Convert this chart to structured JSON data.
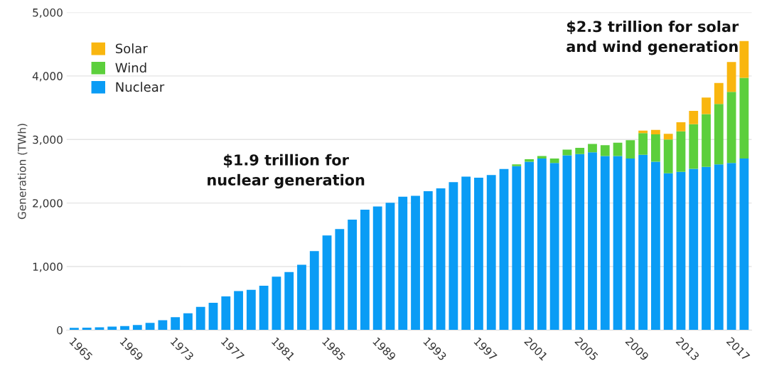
{
  "chart_data": {
    "type": "bar",
    "stacked": true,
    "ylabel": "Generation (TWh)",
    "categories": [
      "1965",
      null,
      null,
      null,
      "1969",
      null,
      null,
      null,
      "1973",
      null,
      null,
      null,
      "1977",
      null,
      null,
      null,
      "1981",
      null,
      null,
      null,
      "1985",
      null,
      null,
      null,
      "1989",
      null,
      null,
      null,
      "1993",
      null,
      null,
      null,
      "1997",
      null,
      null,
      null,
      "2001",
      null,
      null,
      null,
      "2005",
      null,
      null,
      null,
      "2009",
      null,
      null,
      null,
      "2013",
      null,
      null,
      null,
      "2017",
      null
    ],
    "series": [
      {
        "name": "Nuclear",
        "color": "#0a9cf5",
        "values": [
          35,
          40,
          45,
          55,
          65,
          80,
          115,
          155,
          205,
          265,
          365,
          430,
          530,
          615,
          635,
          700,
          840,
          915,
          1030,
          1245,
          1490,
          1590,
          1740,
          1895,
          1945,
          2005,
          2100,
          2115,
          2185,
          2230,
          2330,
          2415,
          2400,
          2440,
          2535,
          2580,
          2650,
          2700,
          2630,
          2750,
          2770,
          2800,
          2740,
          2740,
          2700,
          2760,
          2650,
          2470,
          2490,
          2540,
          2570,
          2610,
          2630,
          2700
        ]
      },
      {
        "name": "Wind",
        "color": "#5ccf3c",
        "values": [
          null,
          null,
          null,
          null,
          null,
          null,
          null,
          null,
          null,
          null,
          null,
          null,
          null,
          null,
          null,
          null,
          null,
          null,
          null,
          null,
          null,
          null,
          null,
          null,
          null,
          null,
          null,
          null,
          null,
          null,
          null,
          null,
          null,
          null,
          null,
          30,
          40,
          40,
          70,
          90,
          100,
          130,
          170,
          210,
          290,
          340,
          430,
          530,
          640,
          700,
          830,
          950,
          1120,
          1270
        ]
      },
      {
        "name": "Solar",
        "color": "#f9b60f",
        "values": [
          null,
          null,
          null,
          null,
          null,
          null,
          null,
          null,
          null,
          null,
          null,
          null,
          null,
          null,
          null,
          null,
          null,
          null,
          null,
          null,
          null,
          null,
          null,
          null,
          null,
          null,
          null,
          null,
          null,
          null,
          null,
          null,
          null,
          null,
          null,
          null,
          null,
          null,
          null,
          null,
          null,
          null,
          null,
          null,
          null,
          40,
          70,
          90,
          140,
          210,
          260,
          330,
          470,
          580
        ]
      }
    ],
    "ylim": [
      0,
      5000
    ],
    "yticks": [
      {
        "value": 0,
        "label": "0"
      },
      {
        "value": 1000,
        "label": "1,000"
      },
      {
        "value": 2000,
        "label": "2,000"
      },
      {
        "value": 3000,
        "label": "3,000"
      },
      {
        "value": 4000,
        "label": "4,000"
      },
      {
        "value": 5000,
        "label": "5,000"
      }
    ],
    "grid": "y",
    "legend": "top left",
    "annotations": [
      "$1.9 trillion for\nnuclear generation",
      "$2.3 trillion for solar\nand wind generation"
    ]
  }
}
